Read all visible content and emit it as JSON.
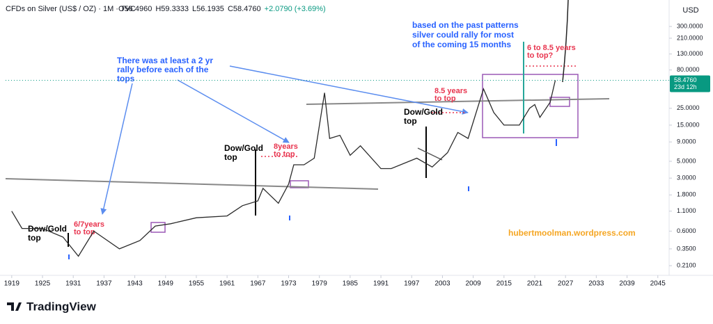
{
  "header": {
    "symbol": "CFDs on Silver (US$ / OZ) · 1M · TVC",
    "open": "O56.4960",
    "high": "H59.3333",
    "low": "L56.1935",
    "close": "C58.4760",
    "change": "+2.0790 (+3.69%)"
  },
  "chart_data": {
    "type": "line",
    "log_scale": true,
    "x": [
      1919,
      1921,
      1925,
      1929,
      1932,
      1935,
      1940,
      1944,
      1947,
      1950,
      1955,
      1961,
      1964,
      1967,
      1968,
      1971,
      1973,
      1974,
      1976,
      1978,
      1980,
      1981,
      1983,
      1985,
      1987,
      1991,
      1993,
      1998,
      2001,
      2004,
      2006,
      2008,
      2011,
      2013,
      2015,
      2018,
      2020,
      2021,
      2022,
      2024,
      2025
    ],
    "series": [
      {
        "name": "Silver",
        "color": "#2a2a2a",
        "values": [
          1.1,
          0.65,
          0.65,
          0.5,
          0.28,
          0.6,
          0.35,
          0.45,
          0.7,
          0.75,
          0.9,
          0.95,
          1.3,
          1.5,
          2.2,
          1.4,
          2.5,
          4.5,
          4.5,
          5.5,
          40,
          10,
          11,
          6,
          8,
          4,
          4,
          5.5,
          4.2,
          6.5,
          12,
          10,
          45,
          22,
          15,
          15,
          25,
          28,
          19,
          30,
          58.476
        ]
      }
    ],
    "xlim": [
      1917.8,
      2046.8
    ],
    "ylim": [
      0.16,
      670
    ],
    "xticks": [
      1919,
      1925,
      1931,
      1937,
      1943,
      1949,
      1955,
      1961,
      1967,
      1973,
      1979,
      1985,
      1991,
      1997,
      2003,
      2009,
      2015,
      2021,
      2027,
      2033,
      2039,
      2045
    ],
    "yticks": [
      {
        "value": 300,
        "label": "300.0000"
      },
      {
        "value": 210,
        "label": "210.0000"
      },
      {
        "value": 130,
        "label": "130.0000"
      },
      {
        "value": 80,
        "label": "80.0000"
      },
      {
        "value": 25,
        "label": "25.0000"
      },
      {
        "value": 15,
        "label": "15.0000"
      },
      {
        "value": 9,
        "label": "9.0000"
      },
      {
        "value": 5,
        "label": "5.0000"
      },
      {
        "value": 3,
        "label": "3.0000"
      },
      {
        "value": 1.8,
        "label": "1.8000"
      },
      {
        "value": 1.1,
        "label": "1.1000"
      },
      {
        "value": 0.6,
        "label": "0.6000"
      },
      {
        "value": 0.35,
        "label": "0.3500"
      },
      {
        "value": 0.21,
        "label": "0.2100"
      }
    ],
    "currency": "USD",
    "last_price": {
      "value": 58.476,
      "label": "58.4760"
    },
    "countdown": "23d 12h",
    "annotations": {
      "forecast": [
        "based on the past patterns",
        "silver could rally for most",
        "of the coming 15 months"
      ],
      "rally": [
        "There was at least a 2 yr",
        "rally before each of the",
        "tops"
      ],
      "next_top": [
        "6 to 8.5 years",
        "to top?"
      ],
      "top_2011": [
        "8.5 years",
        "to top"
      ],
      "top_1980": [
        "8years",
        "to top"
      ],
      "top_1935": [
        "6/7years",
        "to top"
      ],
      "dow_gold_1999": [
        "Dow/Gold",
        "top"
      ],
      "dow_gold_1966": [
        "Dow/Gold",
        "top"
      ],
      "dow_gold_1929": [
        "Dow/Gold",
        "top"
      ],
      "watermark": "hubertmoolman.wordpress.com"
    },
    "logo": "TradingView"
  }
}
